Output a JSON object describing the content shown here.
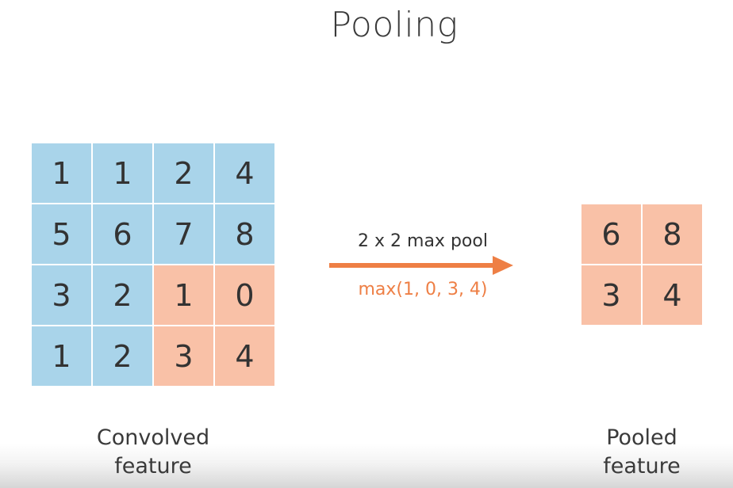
{
  "title": "Pooling",
  "convolved": {
    "rows": [
      [
        "1",
        "1",
        "2",
        "4"
      ],
      [
        "5",
        "6",
        "7",
        "8"
      ],
      [
        "3",
        "2",
        "1",
        "0"
      ],
      [
        "1",
        "2",
        "3",
        "4"
      ]
    ],
    "highlight_region": {
      "rows": [
        2,
        3
      ],
      "cols": [
        2,
        3
      ]
    },
    "caption_line1": "Convolved",
    "caption_line2": "feature"
  },
  "operation": {
    "label": "2 x 2 max pool",
    "formula": "max(1, 0, 3, 4)"
  },
  "pooled": {
    "rows": [
      [
        "6",
        "8"
      ],
      [
        "3",
        "4"
      ]
    ],
    "caption_line1": "Pooled",
    "caption_line2": "feature"
  },
  "colors": {
    "blue_cell": "#a9d4ea",
    "salmon_cell": "#f9c1a7",
    "arrow": "#ee7f45",
    "formula_text": "#ee7f45"
  }
}
